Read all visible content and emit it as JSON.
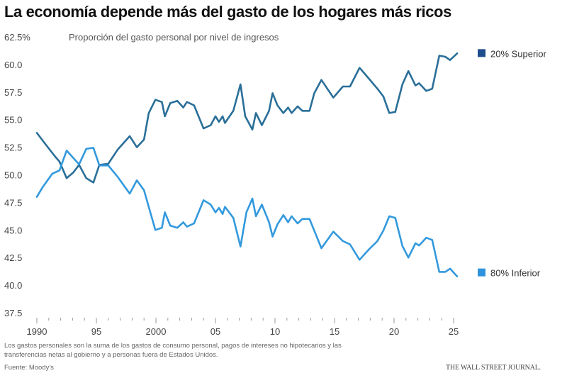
{
  "chart_data": {
    "type": "line",
    "title": "La economía depende más del gasto de los hogares más ricos",
    "subtitle": "Proporción del gasto personal por nivel de ingresos",
    "xlabel": "",
    "ylabel": "",
    "xlim": [
      1990,
      2025.5
    ],
    "ylim": [
      37.5,
      62.5
    ],
    "y_ticks": [
      "62.5%",
      "60.0",
      "57.5",
      "55.0",
      "52.5",
      "50.0",
      "47.5",
      "45.0",
      "42.5",
      "40.0",
      "37.5"
    ],
    "y_tick_values": [
      62.5,
      60,
      57.5,
      55,
      52.5,
      50,
      47.5,
      45,
      42.5,
      40,
      37.5
    ],
    "x_ticks": [
      "1990",
      "95",
      "2000",
      "05",
      "10",
      "15",
      "20",
      "25"
    ],
    "x_tick_values": [
      1990,
      1995,
      2000,
      2005,
      2010,
      2015,
      2020,
      2025
    ],
    "grid": false,
    "legend_placement": "right, inline with line ends",
    "series": [
      {
        "name": "20% Superior",
        "color": "#1f4e8c",
        "line_color": "#2a6f98",
        "x": [
          1990.0,
          1990.7,
          1991.5,
          1991.9,
          1992.5,
          1993.05,
          1993.55,
          1994.15,
          1994.75,
          1995.25,
          1996.0,
          1996.8,
          1997.8,
          1998.4,
          1999.0,
          1999.4,
          1999.95,
          2000.5,
          2000.75,
          2001.2,
          2001.8,
          2002.3,
          2002.6,
          2003.2,
          2004.0,
          2004.6,
          2005.0,
          2005.3,
          2005.6,
          2005.8,
          2006.5,
          2007.1,
          2007.5,
          2008.1,
          2008.4,
          2008.9,
          2009.5,
          2009.8,
          2010.2,
          2010.7,
          2011.1,
          2011.4,
          2011.9,
          2012.3,
          2012.9,
          2013.3,
          2013.9,
          2014.9,
          2015.7,
          2016.3,
          2017.1,
          2017.9,
          2018.6,
          2019.1,
          2019.6,
          2020.1,
          2020.7,
          2021.2,
          2021.8,
          2022.1,
          2022.7,
          2023.2,
          2023.8,
          2024.3,
          2024.7,
          2025.3
        ],
        "values": [
          53.8,
          52.8,
          51.7,
          51.2,
          49.7,
          50.2,
          50.9,
          49.7,
          49.3,
          50.9,
          51.0,
          52.3,
          53.5,
          52.5,
          53.2,
          55.6,
          56.8,
          56.6,
          55.3,
          56.5,
          56.7,
          56.1,
          56.6,
          56.3,
          54.2,
          54.5,
          55.3,
          54.8,
          55.3,
          54.7,
          55.8,
          58.2,
          55.3,
          54.1,
          55.6,
          54.5,
          55.8,
          57.4,
          56.3,
          55.6,
          56.1,
          55.6,
          56.2,
          55.8,
          55.8,
          57.4,
          58.6,
          57.0,
          58.0,
          58.0,
          59.7,
          58.7,
          57.8,
          57.1,
          55.6,
          55.7,
          58.2,
          59.4,
          58.1,
          58.3,
          57.6,
          57.8,
          60.8,
          60.7,
          60.4,
          61.0
        ]
      },
      {
        "name": "80% Inferior",
        "color": "#2e93dc",
        "line_color": "#3399dd",
        "x": [
          1990.0,
          1990.5,
          1991.3,
          1991.9,
          1992.5,
          1993.0,
          1993.55,
          1994.15,
          1994.75,
          1995.25,
          1996.0,
          1996.8,
          1997.8,
          1998.4,
          1999.0,
          1999.95,
          2000.5,
          2000.75,
          2001.2,
          2001.8,
          2002.3,
          2002.6,
          2003.2,
          2004.0,
          2004.6,
          2005.0,
          2005.3,
          2005.6,
          2005.8,
          2006.5,
          2007.1,
          2007.6,
          2008.1,
          2008.4,
          2008.9,
          2009.5,
          2009.8,
          2010.2,
          2010.7,
          2011.1,
          2011.4,
          2011.9,
          2012.3,
          2012.9,
          2013.9,
          2014.9,
          2015.7,
          2016.3,
          2017.1,
          2017.9,
          2018.6,
          2019.1,
          2019.6,
          2020.1,
          2020.7,
          2021.2,
          2021.8,
          2022.1,
          2022.7,
          2023.2,
          2023.8,
          2024.3,
          2024.7,
          2025.3
        ],
        "values": [
          48.0,
          48.9,
          50.1,
          50.4,
          52.2,
          51.6,
          50.95,
          52.35,
          52.45,
          50.85,
          50.85,
          49.8,
          48.3,
          49.5,
          48.6,
          45.0,
          45.2,
          46.6,
          45.4,
          45.2,
          45.7,
          45.3,
          45.6,
          47.7,
          47.3,
          46.6,
          47.0,
          46.45,
          47.1,
          46.1,
          43.5,
          46.6,
          47.85,
          46.25,
          47.3,
          45.7,
          44.4,
          45.5,
          46.35,
          45.7,
          46.25,
          45.6,
          46.0,
          46.0,
          43.35,
          44.85,
          44.0,
          43.7,
          42.3,
          43.25,
          44.0,
          44.95,
          46.25,
          46.1,
          43.55,
          42.5,
          43.8,
          43.6,
          44.3,
          44.1,
          41.2,
          41.2,
          41.5,
          40.8
        ]
      }
    ]
  },
  "footer": {
    "note": "Los gastos personales son la suma de los gastos de consumo personal, pagos de intereses no hipotecarios y las transferencias netas al gobierno y a personas fuera de Estados Unidos.",
    "source": "Fuente: Moody's",
    "brand": "THE WALL STREET JOURNAL."
  }
}
